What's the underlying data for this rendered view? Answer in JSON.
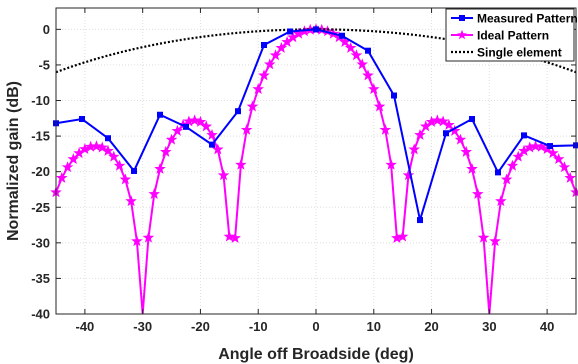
{
  "chart_data": {
    "type": "line",
    "xlabel": "Angle off Broadside (deg)",
    "ylabel": "Normalized gain (dB)",
    "xlim": [
      -45,
      45
    ],
    "ylim": [
      -40,
      3
    ],
    "xticks": [
      -40,
      -30,
      -20,
      -10,
      0,
      10,
      20,
      30,
      40
    ],
    "yticks": [
      0,
      -5,
      -10,
      -15,
      -20,
      -25,
      -30,
      -35,
      -40
    ],
    "grid": true,
    "legend_position": "top-right",
    "series": [
      {
        "name": "Measured Pattern",
        "color": "#0000ff",
        "marker": "square",
        "x": [
          -45,
          -40.5,
          -36,
          -31.5,
          -27,
          -22.5,
          -18,
          -13.5,
          -9,
          -4.5,
          0,
          4.5,
          9,
          13.5,
          18,
          22.5,
          27,
          31.5,
          36,
          40.5,
          45
        ],
        "y": [
          -13.2,
          -12.6,
          -15.3,
          -19.9,
          -12.0,
          -13.7,
          -16.2,
          -11.5,
          -2.2,
          -0.3,
          0,
          -0.9,
          -3.0,
          -9.3,
          -26.8,
          -14.6,
          -12.6,
          -20.1,
          -14.9,
          -16.4,
          -16.3
        ]
      },
      {
        "name": "Ideal Pattern",
        "color": "#ff00ff",
        "marker": "star",
        "model": "array_factor",
        "elements": 8,
        "spacing_wavelengths": 0.5,
        "x_step": 1
      },
      {
        "name": "Single element",
        "color": "#000000",
        "style": "dotted",
        "model": "cos_squared",
        "x_step": 1
      }
    ]
  }
}
